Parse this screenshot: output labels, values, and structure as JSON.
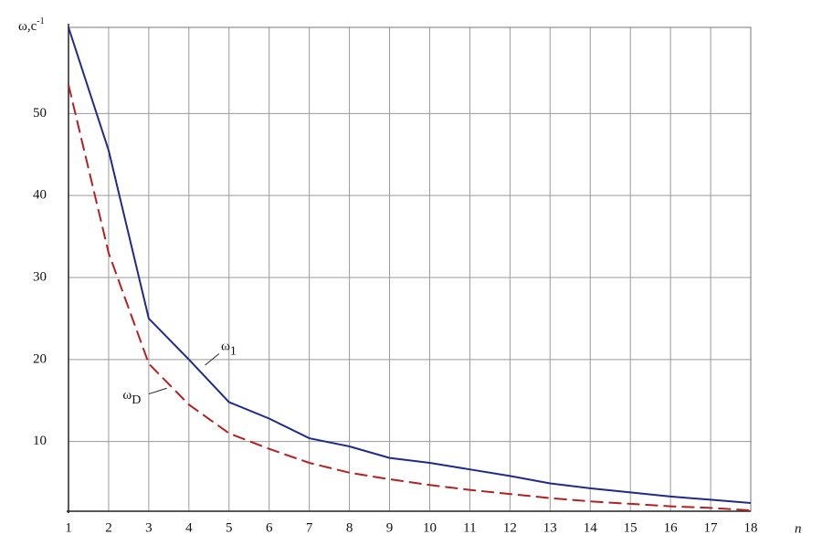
{
  "chart_data": {
    "type": "line",
    "y_label": "ω,c-1",
    "x_label": "n",
    "x": [
      1,
      2,
      3,
      4,
      5,
      6,
      7,
      8,
      9,
      10,
      11,
      12,
      13,
      14,
      15,
      16,
      17,
      18
    ],
    "series": [
      {
        "name": "ω1",
        "color": "#1f2a8a",
        "dashed": false,
        "values": [
          60.5,
          45.5,
          25,
          20,
          14.8,
          12.8,
          10.4,
          9.4,
          8,
          7.4,
          6.6,
          5.8,
          4.9,
          4.3,
          3.8,
          3.3,
          2.9,
          2.5
        ]
      },
      {
        "name": "ωD",
        "color": "#b22222",
        "dashed": true,
        "values": [
          53.5,
          33,
          19.5,
          14.5,
          11,
          9.1,
          7.4,
          6.2,
          5.4,
          4.7,
          4.1,
          3.6,
          3.1,
          2.7,
          2.4,
          2.1,
          1.9,
          1.6
        ]
      }
    ],
    "xlim": [
      1,
      18
    ],
    "xticks": [
      1,
      2,
      3,
      4,
      5,
      6,
      7,
      8,
      9,
      10,
      11,
      12,
      13,
      14,
      15,
      16,
      17,
      18
    ],
    "ylim": [
      1.5,
      60.5
    ],
    "yticks": [
      10,
      20,
      30,
      40,
      50
    ],
    "grid": true
  }
}
